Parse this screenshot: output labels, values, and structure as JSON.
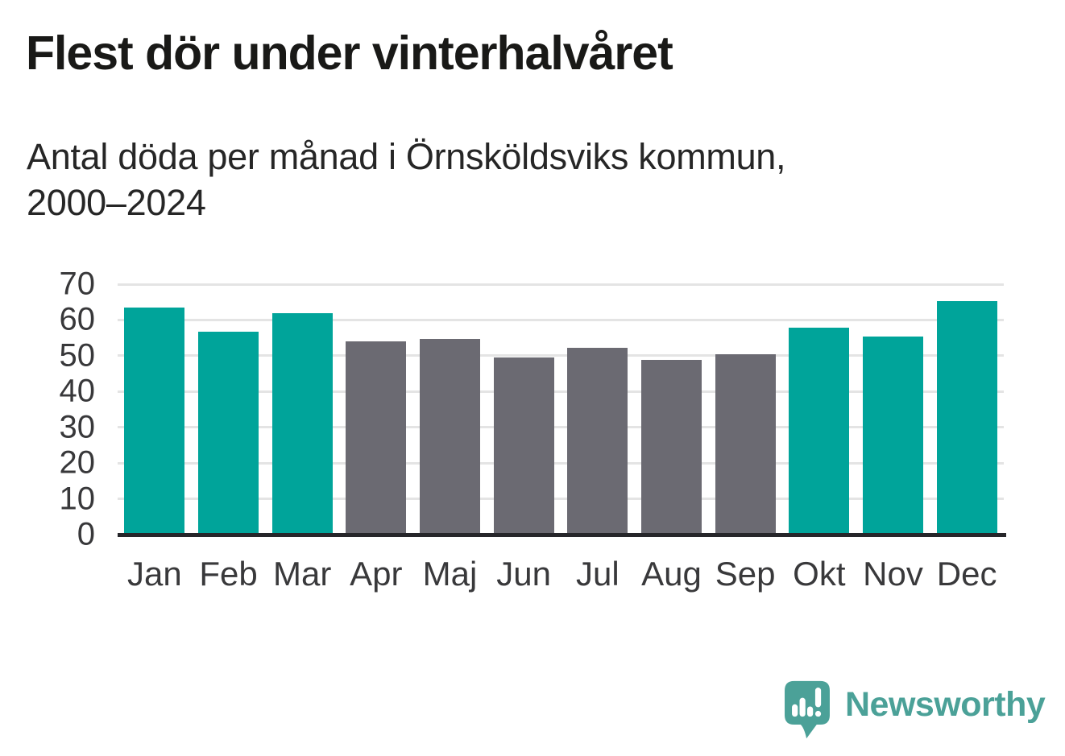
{
  "title": "Flest dör under vinterhalvåret",
  "subtitle_lines": {
    "0": "Antal döda per månad i Örnsköldsviks kommun,",
    "1": "2000–2024"
  },
  "logo": {
    "name": "Newsworthy",
    "icon": "speech-bubble-bar-chart-icon",
    "color": "#4ba198"
  },
  "colors": {
    "winter": "#00a49a",
    "summer": "#6b6a72",
    "gridline": "#e4e4e4",
    "axis": "#26262a",
    "label_text": "#39393b"
  },
  "chart_data": {
    "type": "bar",
    "title": "Flest dör under vinterhalvåret",
    "subtitle": "Antal döda per månad i Örnsköldsviks kommun, 2000–2024",
    "categories": [
      "Jan",
      "Feb",
      "Mar",
      "Apr",
      "Maj",
      "Jun",
      "Jul",
      "Aug",
      "Sep",
      "Okt",
      "Nov",
      "Dec"
    ],
    "values": [
      63.5,
      56.7,
      61.9,
      54.0,
      54.6,
      49.5,
      52.3,
      48.8,
      50.5,
      57.9,
      55.3,
      65.2
    ],
    "series_color_keys": [
      "winter",
      "winter",
      "winter",
      "summer",
      "summer",
      "summer",
      "summer",
      "summer",
      "summer",
      "winter",
      "winter",
      "winter"
    ],
    "xlabel": "",
    "ylabel": "",
    "ylim": [
      0,
      70
    ],
    "yticks": [
      0,
      10,
      20,
      30,
      40,
      50,
      60,
      70
    ],
    "grid": true,
    "legend": false
  }
}
